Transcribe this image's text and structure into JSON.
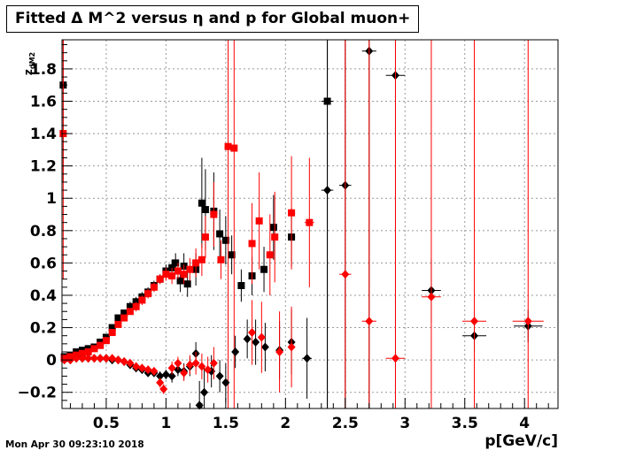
{
  "title": "Fitted Δ M^2 versus η and p for Global muon+",
  "timestamp": "Mon Apr 30 09:23:10 2018",
  "chart_data": {
    "type": "scatter",
    "title": "Fitted Δ M^2 versus η and p for Global muon+",
    "xlabel": "p[GeV/c]",
    "ylabel_main": "z",
    "ylabel_sub": "dM2",
    "xlim": [
      0.13,
      4.28
    ],
    "ylim": [
      -0.3,
      1.98
    ],
    "x_ticks": [
      0.5,
      1,
      1.5,
      2,
      2.5,
      3,
      3.5,
      4
    ],
    "x_tick_labels": [
      "0.5",
      "1",
      "1.5",
      "2",
      "2.5",
      "3",
      "3.5",
      "4"
    ],
    "y_ticks": [
      -0.2,
      0,
      0.2,
      0.4,
      0.6,
      0.8,
      1,
      1.2,
      1.4,
      1.6,
      1.8
    ],
    "y_tick_labels": [
      "−0.2",
      "0",
      "0.2",
      "0.4",
      "0.6",
      "0.8",
      "1",
      "1.2",
      "1.4",
      "1.6",
      "1.8"
    ],
    "grid": true,
    "series": [
      {
        "marker": "square",
        "color": "#000000",
        "points": [
          {
            "x": 0.14,
            "y": 1.7,
            "xerr": 0.01,
            "yerr": 0.6
          },
          {
            "x": 0.15,
            "y": 0.02,
            "xerr": 0.005,
            "yerr": 0.02
          },
          {
            "x": 0.2,
            "y": 0.03,
            "xerr": 0.01,
            "yerr": 0.02
          },
          {
            "x": 0.25,
            "y": 0.05,
            "xerr": 0.01,
            "yerr": 0.02
          },
          {
            "x": 0.3,
            "y": 0.06,
            "xerr": 0.01,
            "yerr": 0.02
          },
          {
            "x": 0.35,
            "y": 0.07,
            "xerr": 0.01,
            "yerr": 0.02
          },
          {
            "x": 0.4,
            "y": 0.08,
            "xerr": 0.01,
            "yerr": 0.02
          },
          {
            "x": 0.45,
            "y": 0.11,
            "xerr": 0.01,
            "yerr": 0.02
          },
          {
            "x": 0.5,
            "y": 0.14,
            "xerr": 0.01,
            "yerr": 0.02
          },
          {
            "x": 0.55,
            "y": 0.2,
            "xerr": 0.01,
            "yerr": 0.02
          },
          {
            "x": 0.6,
            "y": 0.26,
            "xerr": 0.01,
            "yerr": 0.02
          },
          {
            "x": 0.65,
            "y": 0.29,
            "xerr": 0.01,
            "yerr": 0.02
          },
          {
            "x": 0.7,
            "y": 0.33,
            "xerr": 0.01,
            "yerr": 0.03
          },
          {
            "x": 0.75,
            "y": 0.36,
            "xerr": 0.01,
            "yerr": 0.03
          },
          {
            "x": 0.8,
            "y": 0.39,
            "xerr": 0.01,
            "yerr": 0.03
          },
          {
            "x": 0.85,
            "y": 0.42,
            "xerr": 0.01,
            "yerr": 0.03
          },
          {
            "x": 0.9,
            "y": 0.46,
            "xerr": 0.01,
            "yerr": 0.03
          },
          {
            "x": 0.95,
            "y": 0.5,
            "xerr": 0.01,
            "yerr": 0.03
          },
          {
            "x": 1.0,
            "y": 0.55,
            "xerr": 0.01,
            "yerr": 0.04
          },
          {
            "x": 1.05,
            "y": 0.57,
            "xerr": 0.01,
            "yerr": 0.05
          },
          {
            "x": 1.08,
            "y": 0.6,
            "xerr": 0.01,
            "yerr": 0.06
          },
          {
            "x": 1.12,
            "y": 0.49,
            "xerr": 0.01,
            "yerr": 0.07
          },
          {
            "x": 1.15,
            "y": 0.58,
            "xerr": 0.01,
            "yerr": 0.08
          },
          {
            "x": 1.18,
            "y": 0.47,
            "xerr": 0.01,
            "yerr": 0.08
          },
          {
            "x": 1.25,
            "y": 0.56,
            "xerr": 0.02,
            "yerr": 0.1
          },
          {
            "x": 1.3,
            "y": 0.97,
            "xerr": 0.02,
            "yerr": 0.28
          },
          {
            "x": 1.33,
            "y": 0.93,
            "xerr": 0.02,
            "yerr": 0.25
          },
          {
            "x": 1.4,
            "y": 0.92,
            "xerr": 0.02,
            "yerr": 0.24
          },
          {
            "x": 1.45,
            "y": 0.78,
            "xerr": 0.02,
            "yerr": 0.15
          },
          {
            "x": 1.5,
            "y": 0.74,
            "xerr": 0.02,
            "yerr": 0.15
          },
          {
            "x": 1.55,
            "y": 0.65,
            "xerr": 0.02,
            "yerr": 0.12
          },
          {
            "x": 1.63,
            "y": 0.46,
            "xerr": 0.02,
            "yerr": 0.1
          },
          {
            "x": 1.72,
            "y": 0.52,
            "xerr": 0.02,
            "yerr": 0.12
          },
          {
            "x": 1.82,
            "y": 0.56,
            "xerr": 0.02,
            "yerr": 0.14
          },
          {
            "x": 1.9,
            "y": 0.82,
            "xerr": 0.03,
            "yerr": 0.2
          },
          {
            "x": 2.05,
            "y": 0.76,
            "xerr": 0.03,
            "yerr": 0.18
          },
          {
            "x": 2.35,
            "y": 1.6,
            "xerr": 0.05,
            "yerr": 2.0
          }
        ]
      },
      {
        "marker": "square",
        "color": "#ff0000",
        "points": [
          {
            "x": 0.14,
            "y": 1.4,
            "xerr": 0.01,
            "yerr": 0.9
          },
          {
            "x": 0.15,
            "y": 0.01,
            "xerr": 0.005,
            "yerr": 0.02
          },
          {
            "x": 0.2,
            "y": 0.02,
            "xerr": 0.01,
            "yerr": 0.02
          },
          {
            "x": 0.25,
            "y": 0.03,
            "xerr": 0.01,
            "yerr": 0.02
          },
          {
            "x": 0.3,
            "y": 0.04,
            "xerr": 0.01,
            "yerr": 0.02
          },
          {
            "x": 0.35,
            "y": 0.05,
            "xerr": 0.01,
            "yerr": 0.02
          },
          {
            "x": 0.4,
            "y": 0.07,
            "xerr": 0.01,
            "yerr": 0.02
          },
          {
            "x": 0.45,
            "y": 0.09,
            "xerr": 0.01,
            "yerr": 0.02
          },
          {
            "x": 0.5,
            "y": 0.12,
            "xerr": 0.01,
            "yerr": 0.02
          },
          {
            "x": 0.55,
            "y": 0.17,
            "xerr": 0.01,
            "yerr": 0.02
          },
          {
            "x": 0.6,
            "y": 0.22,
            "xerr": 0.01,
            "yerr": 0.02
          },
          {
            "x": 0.65,
            "y": 0.26,
            "xerr": 0.01,
            "yerr": 0.02
          },
          {
            "x": 0.7,
            "y": 0.3,
            "xerr": 0.01,
            "yerr": 0.02
          },
          {
            "x": 0.75,
            "y": 0.33,
            "xerr": 0.01,
            "yerr": 0.03
          },
          {
            "x": 0.8,
            "y": 0.37,
            "xerr": 0.01,
            "yerr": 0.03
          },
          {
            "x": 0.85,
            "y": 0.41,
            "xerr": 0.01,
            "yerr": 0.03
          },
          {
            "x": 0.9,
            "y": 0.45,
            "xerr": 0.01,
            "yerr": 0.03
          },
          {
            "x": 0.95,
            "y": 0.5,
            "xerr": 0.01,
            "yerr": 0.03
          },
          {
            "x": 1.0,
            "y": 0.53,
            "xerr": 0.01,
            "yerr": 0.04
          },
          {
            "x": 1.05,
            "y": 0.52,
            "xerr": 0.01,
            "yerr": 0.05
          },
          {
            "x": 1.1,
            "y": 0.55,
            "xerr": 0.01,
            "yerr": 0.05
          },
          {
            "x": 1.15,
            "y": 0.53,
            "xerr": 0.01,
            "yerr": 0.06
          },
          {
            "x": 1.2,
            "y": 0.56,
            "xerr": 0.01,
            "yerr": 0.07
          },
          {
            "x": 1.25,
            "y": 0.6,
            "xerr": 0.02,
            "yerr": 0.09
          },
          {
            "x": 1.3,
            "y": 0.62,
            "xerr": 0.02,
            "yerr": 0.1
          },
          {
            "x": 1.33,
            "y": 0.76,
            "xerr": 0.02,
            "yerr": 0.13
          },
          {
            "x": 1.4,
            "y": 0.9,
            "xerr": 0.02,
            "yerr": 0.2
          },
          {
            "x": 1.46,
            "y": 0.62,
            "xerr": 0.02,
            "yerr": 0.12
          },
          {
            "x": 1.52,
            "y": 1.32,
            "xerr": 0.02,
            "yerr": 2.0
          },
          {
            "x": 1.57,
            "y": 1.31,
            "xerr": 0.02,
            "yerr": 2.0
          },
          {
            "x": 1.72,
            "y": 0.72,
            "xerr": 0.02,
            "yerr": 0.25
          },
          {
            "x": 1.78,
            "y": 0.86,
            "xerr": 0.02,
            "yerr": 0.3
          },
          {
            "x": 1.87,
            "y": 0.65,
            "xerr": 0.03,
            "yerr": 0.25
          },
          {
            "x": 1.91,
            "y": 0.76,
            "xerr": 0.03,
            "yerr": 0.28
          },
          {
            "x": 2.05,
            "y": 0.91,
            "xerr": 0.03,
            "yerr": 0.35
          },
          {
            "x": 2.2,
            "y": 0.85,
            "xerr": 0.04,
            "yerr": 0.4
          }
        ]
      },
      {
        "marker": "diamond",
        "color": "#000000",
        "points": [
          {
            "x": 0.15,
            "y": 0.0,
            "xerr": 0.005,
            "yerr": 0.02
          },
          {
            "x": 0.2,
            "y": 0.0,
            "xerr": 0.01,
            "yerr": 0.02
          },
          {
            "x": 0.25,
            "y": 0.01,
            "xerr": 0.01,
            "yerr": 0.02
          },
          {
            "x": 0.3,
            "y": 0.01,
            "xerr": 0.01,
            "yerr": 0.02
          },
          {
            "x": 0.35,
            "y": 0.01,
            "xerr": 0.01,
            "yerr": 0.02
          },
          {
            "x": 0.4,
            "y": 0.01,
            "xerr": 0.01,
            "yerr": 0.02
          },
          {
            "x": 0.45,
            "y": 0.01,
            "xerr": 0.01,
            "yerr": 0.02
          },
          {
            "x": 0.5,
            "y": 0.01,
            "xerr": 0.01,
            "yerr": 0.02
          },
          {
            "x": 0.55,
            "y": 0.0,
            "xerr": 0.01,
            "yerr": 0.02
          },
          {
            "x": 0.6,
            "y": 0.0,
            "xerr": 0.01,
            "yerr": 0.02
          },
          {
            "x": 0.65,
            "y": -0.01,
            "xerr": 0.01,
            "yerr": 0.02
          },
          {
            "x": 0.7,
            "y": -0.03,
            "xerr": 0.01,
            "yerr": 0.02
          },
          {
            "x": 0.75,
            "y": -0.05,
            "xerr": 0.01,
            "yerr": 0.02
          },
          {
            "x": 0.8,
            "y": -0.06,
            "xerr": 0.01,
            "yerr": 0.02
          },
          {
            "x": 0.85,
            "y": -0.08,
            "xerr": 0.01,
            "yerr": 0.02
          },
          {
            "x": 0.9,
            "y": -0.08,
            "xerr": 0.01,
            "yerr": 0.02
          },
          {
            "x": 0.95,
            "y": -0.1,
            "xerr": 0.01,
            "yerr": 0.03
          },
          {
            "x": 1.0,
            "y": -0.09,
            "xerr": 0.01,
            "yerr": 0.03
          },
          {
            "x": 1.05,
            "y": -0.1,
            "xerr": 0.01,
            "yerr": 0.04
          },
          {
            "x": 1.1,
            "y": -0.06,
            "xerr": 0.01,
            "yerr": 0.04
          },
          {
            "x": 1.15,
            "y": -0.07,
            "xerr": 0.01,
            "yerr": 0.05
          },
          {
            "x": 1.2,
            "y": -0.04,
            "xerr": 0.01,
            "yerr": 0.06
          },
          {
            "x": 1.25,
            "y": 0.04,
            "xerr": 0.01,
            "yerr": 0.07
          },
          {
            "x": 1.28,
            "y": -0.28,
            "xerr": 0.02,
            "yerr": 0.15
          },
          {
            "x": 1.32,
            "y": -0.2,
            "xerr": 0.02,
            "yerr": 0.15
          },
          {
            "x": 1.38,
            "y": -0.07,
            "xerr": 0.02,
            "yerr": 0.1
          },
          {
            "x": 1.45,
            "y": -0.1,
            "xerr": 0.02,
            "yerr": 0.1
          },
          {
            "x": 1.5,
            "y": -0.14,
            "xerr": 0.02,
            "yerr": 0.12
          },
          {
            "x": 1.58,
            "y": 0.05,
            "xerr": 0.02,
            "yerr": 0.1
          },
          {
            "x": 1.68,
            "y": 0.13,
            "xerr": 0.02,
            "yerr": 0.12
          },
          {
            "x": 1.75,
            "y": 0.11,
            "xerr": 0.02,
            "yerr": 0.14
          },
          {
            "x": 1.83,
            "y": 0.08,
            "xerr": 0.03,
            "yerr": 0.15
          },
          {
            "x": 1.95,
            "y": 0.06,
            "xerr": 0.03,
            "yerr": 0.18
          },
          {
            "x": 2.05,
            "y": 0.11,
            "xerr": 0.03,
            "yerr": 0.2
          },
          {
            "x": 2.18,
            "y": 0.01,
            "xerr": 0.04,
            "yerr": 0.25
          },
          {
            "x": 2.35,
            "y": 1.05,
            "xerr": 0.05,
            "yerr": 1.4
          },
          {
            "x": 2.5,
            "y": 1.08,
            "xerr": 0.05,
            "yerr": 1.5
          },
          {
            "x": 2.7,
            "y": 1.91,
            "xerr": 0.06,
            "yerr": 2.5
          },
          {
            "x": 2.92,
            "y": 1.76,
            "xerr": 0.08,
            "yerr": 2.5
          },
          {
            "x": 3.22,
            "y": 0.43,
            "xerr": 0.08,
            "yerr": 0.2
          },
          {
            "x": 3.58,
            "y": 0.15,
            "xerr": 0.1,
            "yerr": 0.1
          },
          {
            "x": 4.03,
            "y": 0.21,
            "xerr": 0.12,
            "yerr": 0.1
          }
        ]
      },
      {
        "marker": "diamond",
        "color": "#ff0000",
        "points": [
          {
            "x": 0.15,
            "y": 0.0,
            "xerr": 0.005,
            "yerr": 0.02
          },
          {
            "x": 0.2,
            "y": 0.0,
            "xerr": 0.01,
            "yerr": 0.02
          },
          {
            "x": 0.25,
            "y": 0.01,
            "xerr": 0.01,
            "yerr": 0.02
          },
          {
            "x": 0.3,
            "y": 0.01,
            "xerr": 0.01,
            "yerr": 0.02
          },
          {
            "x": 0.35,
            "y": 0.01,
            "xerr": 0.01,
            "yerr": 0.02
          },
          {
            "x": 0.4,
            "y": 0.01,
            "xerr": 0.01,
            "yerr": 0.02
          },
          {
            "x": 0.45,
            "y": 0.01,
            "xerr": 0.01,
            "yerr": 0.02
          },
          {
            "x": 0.5,
            "y": 0.01,
            "xerr": 0.01,
            "yerr": 0.02
          },
          {
            "x": 0.55,
            "y": 0.01,
            "xerr": 0.01,
            "yerr": 0.02
          },
          {
            "x": 0.6,
            "y": 0.0,
            "xerr": 0.01,
            "yerr": 0.02
          },
          {
            "x": 0.65,
            "y": -0.01,
            "xerr": 0.01,
            "yerr": 0.02
          },
          {
            "x": 0.7,
            "y": -0.02,
            "xerr": 0.01,
            "yerr": 0.02
          },
          {
            "x": 0.75,
            "y": -0.04,
            "xerr": 0.01,
            "yerr": 0.02
          },
          {
            "x": 0.8,
            "y": -0.05,
            "xerr": 0.01,
            "yerr": 0.02
          },
          {
            "x": 0.85,
            "y": -0.06,
            "xerr": 0.01,
            "yerr": 0.02
          },
          {
            "x": 0.9,
            "y": -0.07,
            "xerr": 0.01,
            "yerr": 0.02
          },
          {
            "x": 0.95,
            "y": -0.14,
            "xerr": 0.01,
            "yerr": 0.03
          },
          {
            "x": 0.98,
            "y": -0.18,
            "xerr": 0.01,
            "yerr": 0.03
          },
          {
            "x": 1.05,
            "y": -0.05,
            "xerr": 0.01,
            "yerr": 0.04
          },
          {
            "x": 1.1,
            "y": -0.02,
            "xerr": 0.01,
            "yerr": 0.04
          },
          {
            "x": 1.15,
            "y": -0.08,
            "xerr": 0.01,
            "yerr": 0.05
          },
          {
            "x": 1.2,
            "y": -0.03,
            "xerr": 0.01,
            "yerr": 0.06
          },
          {
            "x": 1.25,
            "y": -0.02,
            "xerr": 0.02,
            "yerr": 0.07
          },
          {
            "x": 1.3,
            "y": -0.04,
            "xerr": 0.02,
            "yerr": 0.08
          },
          {
            "x": 1.35,
            "y": -0.06,
            "xerr": 0.02,
            "yerr": 0.08
          },
          {
            "x": 1.4,
            "y": -0.02,
            "xerr": 0.02,
            "yerr": 0.1
          },
          {
            "x": 1.72,
            "y": 0.17,
            "xerr": 0.02,
            "yerr": 0.2
          },
          {
            "x": 1.8,
            "y": 0.14,
            "xerr": 0.02,
            "yerr": 0.22
          },
          {
            "x": 1.95,
            "y": 0.05,
            "xerr": 0.03,
            "yerr": 0.25
          },
          {
            "x": 2.05,
            "y": 0.08,
            "xerr": 0.03,
            "yerr": 0.25
          },
          {
            "x": 2.5,
            "y": 0.53,
            "xerr": 0.05,
            "yerr": 2.5
          },
          {
            "x": 2.7,
            "y": 0.24,
            "xerr": 0.06,
            "yerr": 2.5
          },
          {
            "x": 2.92,
            "y": 0.01,
            "xerr": 0.08,
            "yerr": 2.5
          },
          {
            "x": 3.22,
            "y": 0.39,
            "xerr": 0.08,
            "yerr": 2.5
          },
          {
            "x": 3.58,
            "y": 0.24,
            "xerr": 0.1,
            "yerr": 2.5
          },
          {
            "x": 4.03,
            "y": 0.24,
            "xerr": 0.13,
            "yerr": 2.5
          }
        ]
      }
    ]
  }
}
